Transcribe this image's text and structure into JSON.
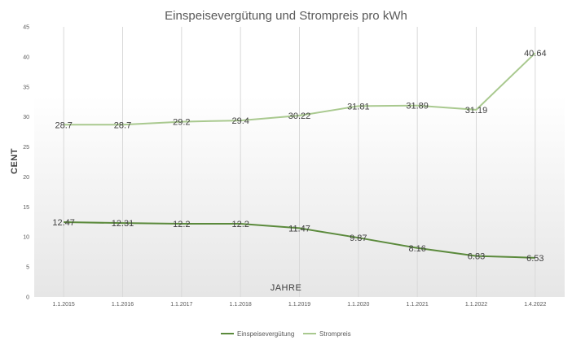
{
  "chart_data": {
    "type": "line",
    "title": "Einspeisevergütung  und Strompreis pro kWh",
    "ylabel": "CENT",
    "xlabel": "JAHRE",
    "ylim": [
      0,
      45
    ],
    "yticks": [
      0,
      5,
      10,
      15,
      20,
      25,
      30,
      35,
      40,
      45
    ],
    "categories": [
      "1.1.2015",
      "1.1.2016",
      "1.1.2017",
      "1.1.2018",
      "1.1.2019",
      "1.1.2020",
      "1.1.2021",
      "1.1.2022",
      "1.4.2022"
    ],
    "grid": "vertical",
    "legend": "bottom",
    "series": [
      {
        "name": "Einspeisevergütung",
        "color": "#5b8a3c",
        "values": [
          12.47,
          12.31,
          12.2,
          12.2,
          11.47,
          9.87,
          8.16,
          6.83,
          6.53
        ],
        "labels": [
          "12.47",
          "12.31",
          "12.2",
          "12.2",
          "11.47",
          "9.87",
          "8.16",
          "6.83",
          "6.53"
        ]
      },
      {
        "name": "Strompreis",
        "color": "#a9c98f",
        "values": [
          28.7,
          28.7,
          29.2,
          29.4,
          30.22,
          31.81,
          31.89,
          31.19,
          40.64
        ],
        "labels": [
          "28.7",
          "28.7",
          "29.2",
          "29.4",
          "30.22",
          "31.81",
          "31.89",
          "31.19",
          "40.64"
        ]
      }
    ]
  }
}
